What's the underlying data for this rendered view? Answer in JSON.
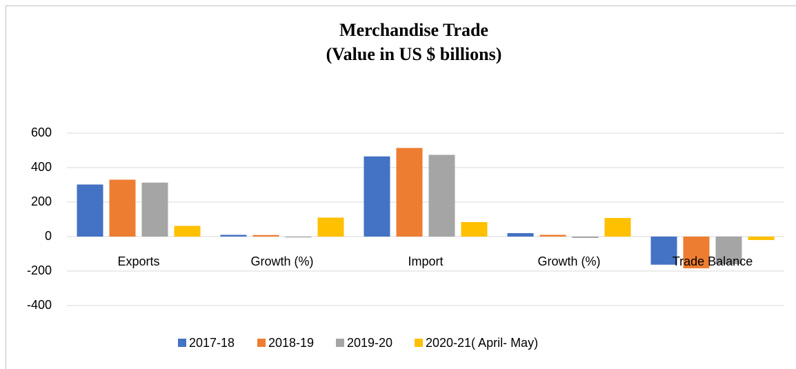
{
  "chart_data": {
    "type": "bar",
    "title": "Merchandise Trade",
    "subtitle": "(Value in US $ billions)",
    "categories": [
      "Exports",
      "Growth (%)",
      "Import",
      "Growth (%)",
      "Trade Balance"
    ],
    "series": [
      {
        "name": "2017-18",
        "color": "#4472c4",
        "values": [
          302,
          10,
          465,
          20,
          -163
        ]
      },
      {
        "name": "2018-19",
        "color": "#ed7d31",
        "values": [
          330,
          9,
          514,
          10,
          -184
        ]
      },
      {
        "name": "2019-20",
        "color": "#a5a5a5",
        "values": [
          313,
          -5,
          474,
          -8,
          -160
        ]
      },
      {
        "name": "2020-21( April- May)",
        "color": "#ffc000",
        "values": [
          62,
          110,
          84,
          108,
          -20
        ]
      }
    ],
    "ylim": [
      -400,
      600
    ],
    "yticks": [
      -400,
      -200,
      0,
      200,
      400,
      600
    ],
    "grid": true,
    "legend": "bottom"
  }
}
